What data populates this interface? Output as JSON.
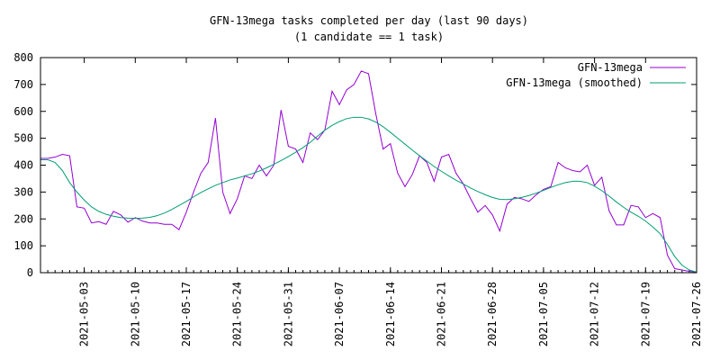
{
  "chart_data": {
    "type": "line",
    "title": "GFN-13mega tasks completed per day (last 90 days)",
    "subtitle": "(1 candidate == 1 task)",
    "xlabel": "",
    "ylabel": "",
    "ylim": [
      0,
      800
    ],
    "yticks": [
      0,
      100,
      200,
      300,
      400,
      500,
      600,
      700,
      800
    ],
    "xlim": [
      "2021-04-27",
      "2021-07-26"
    ],
    "xticks": [
      "2021-05-03",
      "2021-05-10",
      "2021-05-17",
      "2021-05-24",
      "2021-05-31",
      "2021-06-07",
      "2021-06-14",
      "2021-06-21",
      "2021-06-28",
      "2021-07-05",
      "2021-07-12",
      "2021-07-19",
      "2021-07-26"
    ],
    "grid": false,
    "legend": "top-right",
    "series": [
      {
        "name": "GFN-13mega",
        "color": "#9400d3",
        "points": [
          [
            "2021-04-27",
            425
          ],
          [
            "2021-04-28",
            425
          ],
          [
            "2021-04-29",
            430
          ],
          [
            "2021-04-30",
            440
          ],
          [
            "2021-05-01",
            435
          ],
          [
            "2021-05-02",
            245
          ],
          [
            "2021-05-03",
            240
          ],
          [
            "2021-05-04",
            185
          ],
          [
            "2021-05-05",
            190
          ],
          [
            "2021-05-06",
            180
          ],
          [
            "2021-05-07",
            228
          ],
          [
            "2021-05-08",
            215
          ],
          [
            "2021-05-09",
            188
          ],
          [
            "2021-05-10",
            205
          ],
          [
            "2021-05-11",
            192
          ],
          [
            "2021-05-12",
            185
          ],
          [
            "2021-05-13",
            185
          ],
          [
            "2021-05-14",
            180
          ],
          [
            "2021-05-15",
            180
          ],
          [
            "2021-05-16",
            160
          ],
          [
            "2021-05-17",
            225
          ],
          [
            "2021-05-18",
            300
          ],
          [
            "2021-05-19",
            370
          ],
          [
            "2021-05-20",
            410
          ],
          [
            "2021-05-21",
            575
          ],
          [
            "2021-05-22",
            300
          ],
          [
            "2021-05-23",
            220
          ],
          [
            "2021-05-24",
            275
          ],
          [
            "2021-05-25",
            360
          ],
          [
            "2021-05-26",
            350
          ],
          [
            "2021-05-27",
            400
          ],
          [
            "2021-05-28",
            360
          ],
          [
            "2021-05-29",
            400
          ],
          [
            "2021-05-30",
            605
          ],
          [
            "2021-05-31",
            470
          ],
          [
            "2021-06-01",
            460
          ],
          [
            "2021-06-02",
            410
          ],
          [
            "2021-06-03",
            520
          ],
          [
            "2021-06-04",
            495
          ],
          [
            "2021-06-05",
            530
          ],
          [
            "2021-06-06",
            675
          ],
          [
            "2021-06-07",
            625
          ],
          [
            "2021-06-08",
            680
          ],
          [
            "2021-06-09",
            700
          ],
          [
            "2021-06-10",
            750
          ],
          [
            "2021-06-11",
            740
          ],
          [
            "2021-06-12",
            590
          ],
          [
            "2021-06-13",
            460
          ],
          [
            "2021-06-14",
            480
          ],
          [
            "2021-06-15",
            370
          ],
          [
            "2021-06-16",
            320
          ],
          [
            "2021-06-17",
            365
          ],
          [
            "2021-06-18",
            435
          ],
          [
            "2021-06-19",
            410
          ],
          [
            "2021-06-20",
            340
          ],
          [
            "2021-06-21",
            430
          ],
          [
            "2021-06-22",
            440
          ],
          [
            "2021-06-23",
            370
          ],
          [
            "2021-06-24",
            330
          ],
          [
            "2021-06-25",
            275
          ],
          [
            "2021-06-26",
            225
          ],
          [
            "2021-06-27",
            250
          ],
          [
            "2021-06-28",
            215
          ],
          [
            "2021-06-29",
            155
          ],
          [
            "2021-06-30",
            255
          ],
          [
            "2021-07-01",
            280
          ],
          [
            "2021-07-02",
            275
          ],
          [
            "2021-07-03",
            265
          ],
          [
            "2021-07-04",
            290
          ],
          [
            "2021-07-05",
            310
          ],
          [
            "2021-07-06",
            320
          ],
          [
            "2021-07-07",
            410
          ],
          [
            "2021-07-08",
            390
          ],
          [
            "2021-07-09",
            380
          ],
          [
            "2021-07-10",
            375
          ],
          [
            "2021-07-11",
            400
          ],
          [
            "2021-07-12",
            325
          ],
          [
            "2021-07-13",
            355
          ],
          [
            "2021-07-14",
            230
          ],
          [
            "2021-07-15",
            178
          ],
          [
            "2021-07-16",
            178
          ],
          [
            "2021-07-17",
            250
          ],
          [
            "2021-07-18",
            245
          ],
          [
            "2021-07-19",
            205
          ],
          [
            "2021-07-20",
            220
          ],
          [
            "2021-07-21",
            205
          ],
          [
            "2021-07-22",
            65
          ],
          [
            "2021-07-23",
            15
          ],
          [
            "2021-07-24",
            10
          ],
          [
            "2021-07-25",
            5
          ],
          [
            "2021-07-26",
            2
          ]
        ]
      },
      {
        "name": "GFN-13mega (smoothed)",
        "color": "#009e73",
        "points": [
          [
            "2021-04-27",
            420
          ],
          [
            "2021-04-28",
            420
          ],
          [
            "2021-04-29",
            410
          ],
          [
            "2021-04-30",
            380
          ],
          [
            "2021-05-01",
            335
          ],
          [
            "2021-05-02",
            300
          ],
          [
            "2021-05-03",
            270
          ],
          [
            "2021-05-04",
            245
          ],
          [
            "2021-05-05",
            228
          ],
          [
            "2021-05-06",
            217
          ],
          [
            "2021-05-07",
            210
          ],
          [
            "2021-05-08",
            205
          ],
          [
            "2021-05-09",
            203
          ],
          [
            "2021-05-10",
            202
          ],
          [
            "2021-05-11",
            203
          ],
          [
            "2021-05-12",
            206
          ],
          [
            "2021-05-13",
            212
          ],
          [
            "2021-05-14",
            222
          ],
          [
            "2021-05-15",
            235
          ],
          [
            "2021-05-16",
            250
          ],
          [
            "2021-05-17",
            265
          ],
          [
            "2021-05-18",
            282
          ],
          [
            "2021-05-19",
            298
          ],
          [
            "2021-05-20",
            312
          ],
          [
            "2021-05-21",
            325
          ],
          [
            "2021-05-22",
            335
          ],
          [
            "2021-05-23",
            345
          ],
          [
            "2021-05-24",
            352
          ],
          [
            "2021-05-25",
            360
          ],
          [
            "2021-05-26",
            368
          ],
          [
            "2021-05-27",
            378
          ],
          [
            "2021-05-28",
            390
          ],
          [
            "2021-05-29",
            403
          ],
          [
            "2021-05-30",
            417
          ],
          [
            "2021-05-31",
            432
          ],
          [
            "2021-06-01",
            448
          ],
          [
            "2021-06-02",
            465
          ],
          [
            "2021-06-03",
            485
          ],
          [
            "2021-06-04",
            508
          ],
          [
            "2021-06-05",
            530
          ],
          [
            "2021-06-06",
            548
          ],
          [
            "2021-06-07",
            562
          ],
          [
            "2021-06-08",
            573
          ],
          [
            "2021-06-09",
            578
          ],
          [
            "2021-06-10",
            578
          ],
          [
            "2021-06-11",
            572
          ],
          [
            "2021-06-12",
            560
          ],
          [
            "2021-06-13",
            543
          ],
          [
            "2021-06-14",
            522
          ],
          [
            "2021-06-15",
            500
          ],
          [
            "2021-06-16",
            478
          ],
          [
            "2021-06-17",
            456
          ],
          [
            "2021-06-18",
            435
          ],
          [
            "2021-06-19",
            415
          ],
          [
            "2021-06-20",
            395
          ],
          [
            "2021-06-21",
            377
          ],
          [
            "2021-06-22",
            360
          ],
          [
            "2021-06-23",
            344
          ],
          [
            "2021-06-24",
            330
          ],
          [
            "2021-06-25",
            315
          ],
          [
            "2021-06-26",
            302
          ],
          [
            "2021-06-27",
            290
          ],
          [
            "2021-06-28",
            280
          ],
          [
            "2021-06-29",
            273
          ],
          [
            "2021-06-30",
            272
          ],
          [
            "2021-07-01",
            275
          ],
          [
            "2021-07-02",
            280
          ],
          [
            "2021-07-03",
            287
          ],
          [
            "2021-07-04",
            296
          ],
          [
            "2021-07-05",
            306
          ],
          [
            "2021-07-06",
            317
          ],
          [
            "2021-07-07",
            327
          ],
          [
            "2021-07-08",
            335
          ],
          [
            "2021-07-09",
            340
          ],
          [
            "2021-07-10",
            340
          ],
          [
            "2021-07-11",
            335
          ],
          [
            "2021-07-12",
            322
          ],
          [
            "2021-07-13",
            305
          ],
          [
            "2021-07-14",
            285
          ],
          [
            "2021-07-15",
            263
          ],
          [
            "2021-07-16",
            243
          ],
          [
            "2021-07-17",
            225
          ],
          [
            "2021-07-18",
            210
          ],
          [
            "2021-07-19",
            192
          ],
          [
            "2021-07-20",
            170
          ],
          [
            "2021-07-21",
            145
          ],
          [
            "2021-07-22",
            105
          ],
          [
            "2021-07-23",
            60
          ],
          [
            "2021-07-24",
            28
          ],
          [
            "2021-07-25",
            10
          ],
          [
            "2021-07-26",
            2
          ]
        ]
      }
    ]
  }
}
